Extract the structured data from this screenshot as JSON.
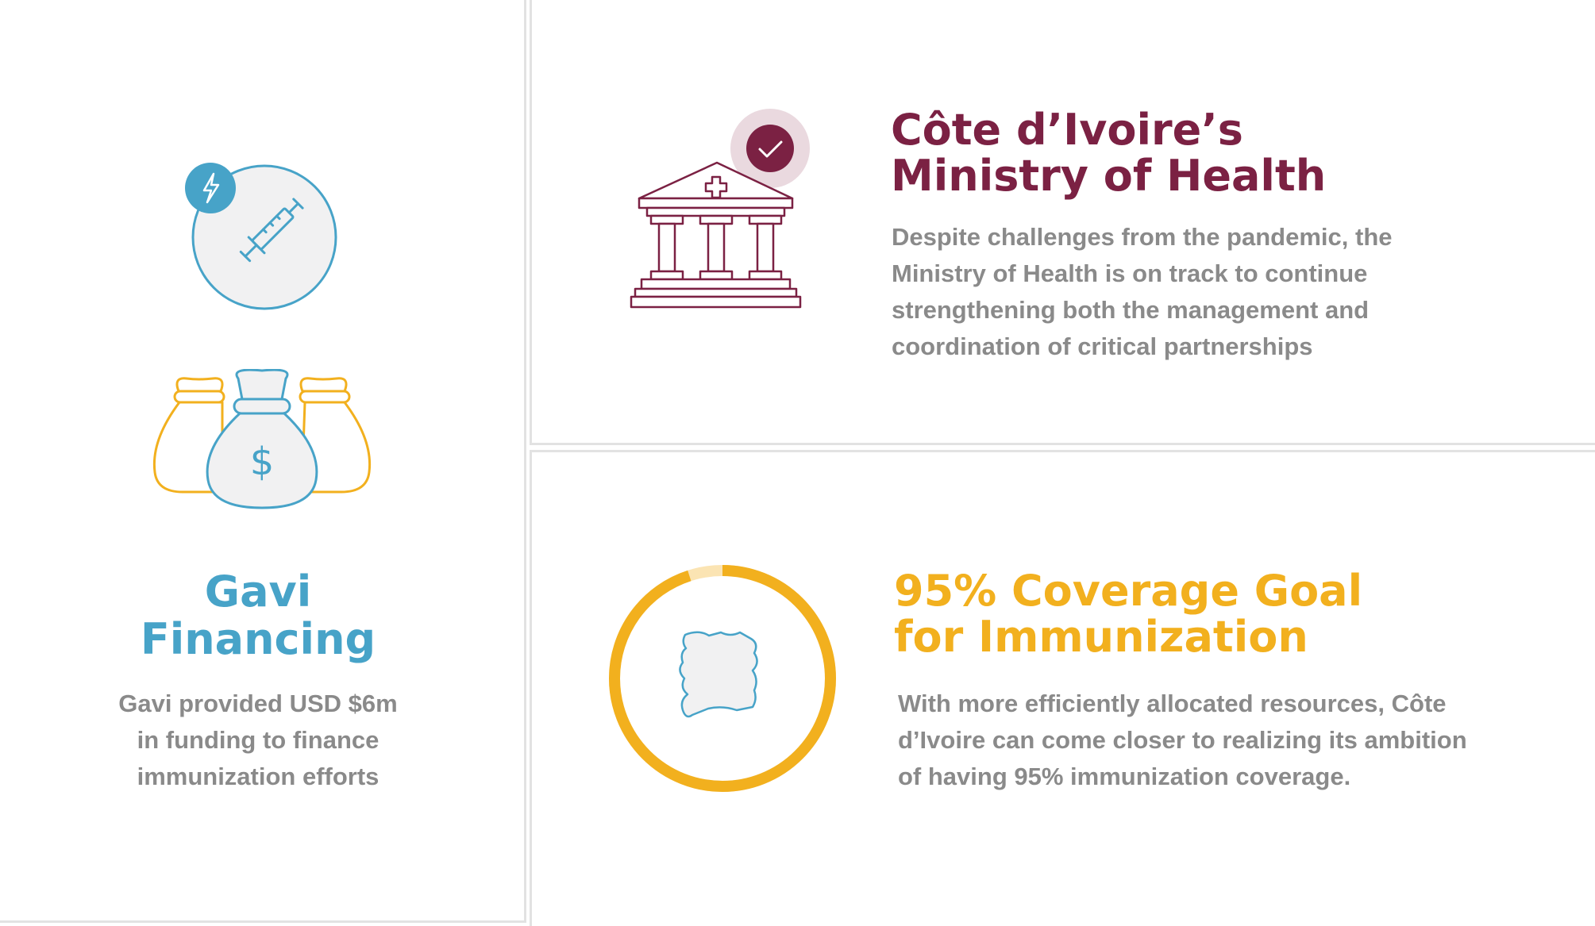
{
  "gavi": {
    "title_line1": "Gavi",
    "title_line2": "Financing",
    "text_line1": "Gavi provided USD $6m",
    "text_line2": "in funding to finance",
    "text_line3": "immunization efforts",
    "icons": [
      "syringe-icon",
      "lightning-icon",
      "money-bags-icon",
      "dollar-sign-icon"
    ]
  },
  "ministry": {
    "title_line1": "Côte d’Ivoire’s",
    "title_line2": "Ministry of Health",
    "text_line1": "Despite challenges from the pandemic, the",
    "text_line2": "Ministry of Health is on track to continue",
    "text_line3": "strengthening both the management and",
    "text_line4": "coordination of critical partnerships",
    "icons": [
      "hospital-building-icon",
      "checkmark-icon"
    ]
  },
  "coverage": {
    "title_line1": "95% Coverage Goal",
    "title_line2": "for Immunization",
    "text_line1": "With more efficiently allocated resources, Côte",
    "text_line2": "d’Ivoire can come closer to realizing its ambition",
    "text_line3": "of having 95% immunization coverage.",
    "progress_fraction": 0.95,
    "icons": [
      "progress-ring-icon",
      "cote-divoire-map-icon"
    ]
  },
  "colors": {
    "blue": "#47a3c8",
    "maroon": "#7b2143",
    "gold": "#f2b01e",
    "text_gray": "#8a8a8a",
    "icon_fill": "#f1f1f2"
  }
}
